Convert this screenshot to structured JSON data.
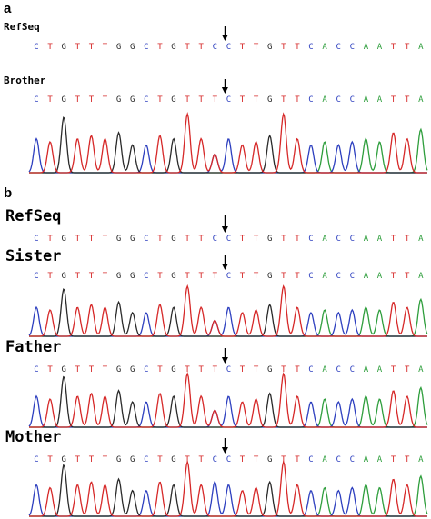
{
  "colors": {
    "A": "#2e9e3c",
    "C": "#2d3fbf",
    "G": "#2a2a2a",
    "T": "#d62828"
  },
  "panels": [
    {
      "id": "a",
      "label": "a",
      "rows": [
        {
          "title": "RefSeq",
          "sequence": "CTGTTTGGCTGTTCCTTGTTCACCAATTA",
          "trace": false,
          "mutant": false
        },
        {
          "title": "Brother",
          "sequence": "CTGTTTGGCTGTTTCTTGTTCACCAATTA",
          "trace": true,
          "mutant": true
        }
      ]
    },
    {
      "id": "b",
      "label": "b",
      "rows": [
        {
          "title": "RefSeq",
          "sequence": "CTGTTTGGCTGTTCCTTGTTCACCAATTA",
          "trace": false,
          "mutant": false
        },
        {
          "title": "Sister",
          "sequence": "CTGTTTGGCTGTTTCTTGTTCACCAATTA",
          "trace": true,
          "mutant": true
        },
        {
          "title": "Father",
          "sequence": "CTGTTTGGCTGTTTCTTGTTCACCAATTA",
          "trace": true,
          "mutant": true
        },
        {
          "title": "Mother",
          "sequence": "CTGTTTGGCTGTTCCTTGTTCACCAATTA",
          "trace": true,
          "mutant": false
        }
      ]
    }
  ]
}
